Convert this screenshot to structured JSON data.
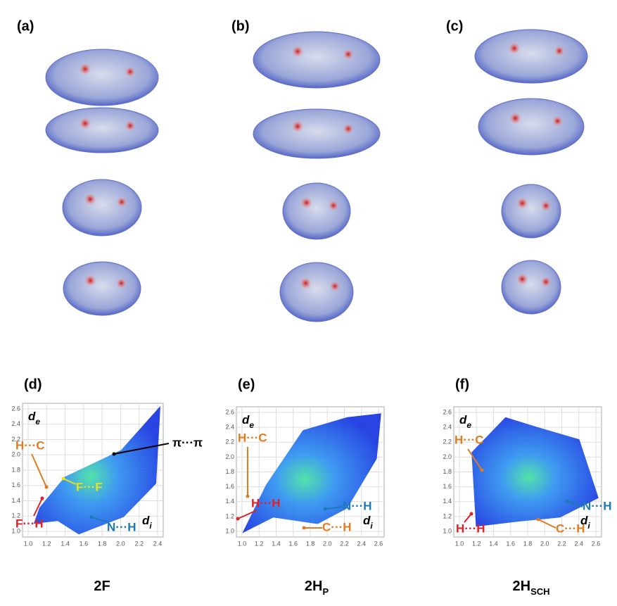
{
  "surface_panels": [
    {
      "label": "(a)"
    },
    {
      "label": "(b)"
    },
    {
      "label": "(c)"
    }
  ],
  "plots": [
    {
      "label": "(d)",
      "ylabel": "d",
      "ylabel_sub": "e",
      "xlabel": "d",
      "xlabel_sub": "i",
      "xticks": [
        "1.0",
        "1.2",
        "1.4",
        "1.6",
        "1.8",
        "2.0",
        "2.2",
        "2.4"
      ],
      "yticks": [
        "1.0",
        "1.2",
        "1.4",
        "1.6",
        "1.8",
        "2.0",
        "2.2",
        "2.4",
        "2.6"
      ],
      "annotations": [
        "H···C",
        "π···π",
        "F···F",
        "F···H",
        "N···H"
      ],
      "compound": {
        "main": "2F",
        "sub": ""
      }
    },
    {
      "label": "(e)",
      "ylabel": "d",
      "ylabel_sub": "e",
      "xlabel": "d",
      "xlabel_sub": "i",
      "xticks": [
        "1.0",
        "1.2",
        "1.4",
        "1.6",
        "1.8",
        "2.0",
        "2.2",
        "2.4",
        "2.6"
      ],
      "yticks": [
        "1.0",
        "1.2",
        "1.4",
        "1.6",
        "1.8",
        "2.0",
        "2.2",
        "2.4",
        "2.6"
      ],
      "annotations": [
        "H···C",
        "H···H",
        "C···H",
        "N···H"
      ],
      "compound": {
        "main": "2H",
        "sub": "P"
      }
    },
    {
      "label": "(f)",
      "ylabel": "d",
      "ylabel_sub": "e",
      "xlabel": "d",
      "xlabel_sub": "i",
      "xticks": [
        "1.0",
        "1.2",
        "1.4",
        "1.6",
        "1.8",
        "2.0",
        "2.2",
        "2.4",
        "2.6"
      ],
      "yticks": [
        "1.0",
        "1.2",
        "1.4",
        "1.6",
        "1.8",
        "2.0",
        "2.2",
        "2.4",
        "2.6"
      ],
      "annotations": [
        "H···C",
        "H···H",
        "C···H",
        "N···H"
      ],
      "compound": {
        "main": "2H",
        "sub": "SCH"
      }
    }
  ]
}
